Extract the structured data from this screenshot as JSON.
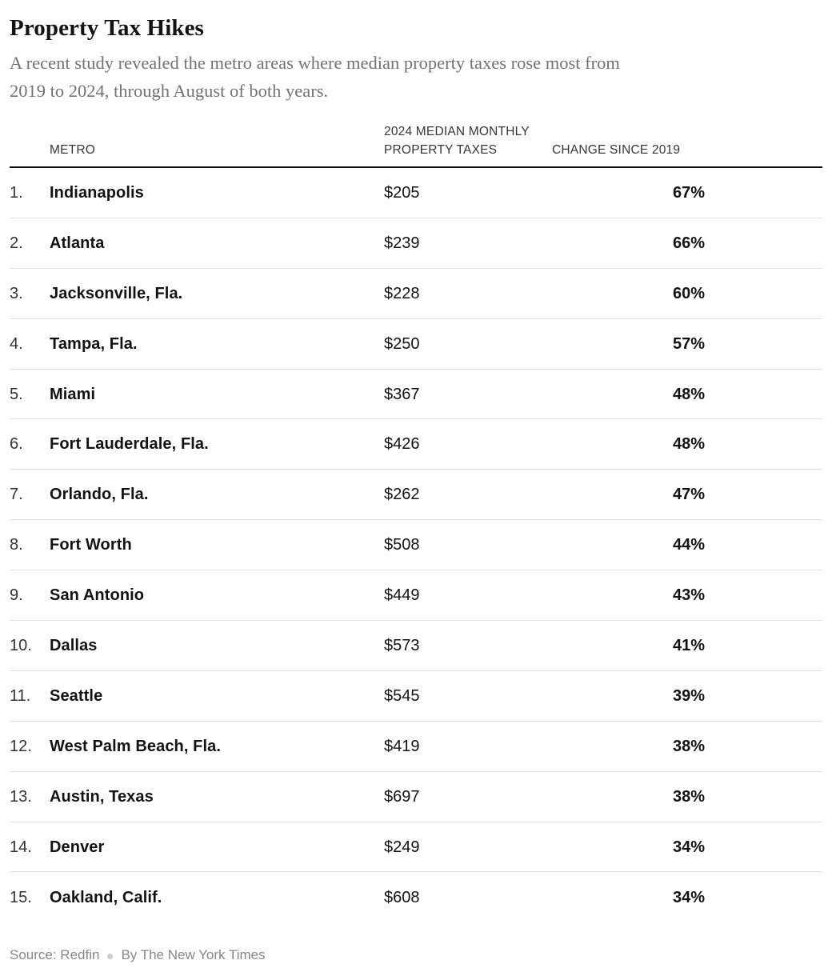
{
  "chart_data": {
    "type": "table",
    "title": "Property Tax Hikes",
    "subtitle": "A recent study revealed the metro areas where median property taxes rose most from 2019 to 2024, through August of both years.",
    "subtitle_lines": [
      "A recent study revealed the metro areas where median property taxes rose most from",
      "2019 to 2024, through August of both years."
    ],
    "columns": [
      "METRO",
      "2024 MEDIAN MONTHLY PROPERTY TAXES",
      "CHANGE SINCE 2019"
    ],
    "rows": [
      {
        "rank": "1.",
        "metro": "Indianapolis",
        "taxes": "$205",
        "change": "67%"
      },
      {
        "rank": "2.",
        "metro": "Atlanta",
        "taxes": "$239",
        "change": "66%"
      },
      {
        "rank": "3.",
        "metro": "Jacksonville, Fla.",
        "taxes": "$228",
        "change": "60%"
      },
      {
        "rank": "4.",
        "metro": "Tampa, Fla.",
        "taxes": "$250",
        "change": "57%"
      },
      {
        "rank": "5.",
        "metro": "Miami",
        "taxes": "$367",
        "change": "48%"
      },
      {
        "rank": "6.",
        "metro": "Fort Lauderdale, Fla.",
        "taxes": "$426",
        "change": "48%"
      },
      {
        "rank": "7.",
        "metro": "Orlando, Fla.",
        "taxes": "$262",
        "change": "47%"
      },
      {
        "rank": "8.",
        "metro": "Fort Worth",
        "taxes": "$508",
        "change": "44%"
      },
      {
        "rank": "9.",
        "metro": "San Antonio",
        "taxes": "$449",
        "change": "43%"
      },
      {
        "rank": "10.",
        "metro": "Dallas",
        "taxes": "$573",
        "change": "41%"
      },
      {
        "rank": "11.",
        "metro": "Seattle",
        "taxes": "$545",
        "change": "39%"
      },
      {
        "rank": "12.",
        "metro": "West Palm Beach, Fla.",
        "taxes": "$419",
        "change": "38%"
      },
      {
        "rank": "13.",
        "metro": "Austin, Texas",
        "taxes": "$697",
        "change": "38%"
      },
      {
        "rank": "14.",
        "metro": "Denver",
        "taxes": "$249",
        "change": "34%"
      },
      {
        "rank": "15.",
        "metro": "Oakland, Calif.",
        "taxes": "$608",
        "change": "34%"
      }
    ],
    "source": "Source: Redfin",
    "byline": "By The New York Times",
    "layout": {
      "legend": "none",
      "grid": "horizontal row separators",
      "change_column_alignment": "left",
      "taxes_column_alignment": "left"
    }
  },
  "colors": {
    "text_primary": "#121212",
    "text_secondary": "#727272",
    "header_text": "#363636",
    "footer_text": "#878787",
    "row_separator": "#e2e2e2",
    "header_rule": "#121212",
    "background": "#ffffff"
  }
}
